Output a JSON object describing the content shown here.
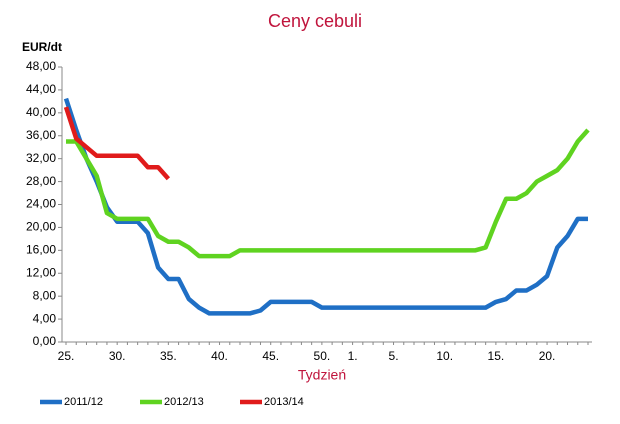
{
  "chart_data": {
    "type": "line",
    "title": "Ceny cebuli",
    "y_label": "EUR/dt",
    "x_label": "Tydzień",
    "categories": [
      "25.",
      null,
      null,
      null,
      null,
      "30.",
      null,
      null,
      null,
      null,
      "35.",
      null,
      null,
      null,
      null,
      "40.",
      null,
      null,
      null,
      null,
      "45.",
      null,
      null,
      null,
      null,
      "50.",
      null,
      null,
      "1.",
      null,
      null,
      null,
      "5.",
      null,
      null,
      null,
      null,
      "10.",
      null,
      null,
      null,
      null,
      "15.",
      null,
      null,
      null,
      null,
      "20.",
      null,
      null,
      null,
      null
    ],
    "series": [
      {
        "name": "2011/12",
        "color": "#1f6fc5",
        "values": [
          42.5,
          37,
          32,
          28,
          23.5,
          21,
          21,
          21,
          19,
          13,
          11,
          11,
          7.5,
          6,
          5,
          5,
          5,
          5,
          5,
          5.5,
          7,
          7,
          7,
          7,
          7,
          6,
          6,
          6,
          6,
          6,
          6,
          6,
          6,
          6,
          6,
          6,
          6,
          6,
          6,
          6,
          6,
          6,
          7,
          7.5,
          9,
          9,
          10,
          11.5,
          16.5,
          18.5,
          21.5,
          21.5
        ]
      },
      {
        "name": "2012/13",
        "color": "#5fd320",
        "values": [
          35,
          35,
          32,
          29,
          22.5,
          21.5,
          21.5,
          21.5,
          21.5,
          18.5,
          17.5,
          17.5,
          16.5,
          15,
          15,
          15,
          15,
          16,
          16,
          16,
          16,
          16,
          16,
          16,
          16,
          16,
          16,
          16,
          16,
          16,
          16,
          16,
          16,
          16,
          16,
          16,
          16,
          16,
          16,
          16,
          16,
          16.5,
          21,
          25,
          25,
          26,
          28,
          29,
          30,
          32,
          35,
          37
        ]
      },
      {
        "name": "2013/14",
        "color": "#e01b1b",
        "values": [
          41,
          35.5,
          34,
          32.5,
          32.5,
          32.5,
          32.5,
          32.5,
          30.5,
          30.5,
          28.5,
          null,
          null,
          null,
          null,
          null,
          null,
          null,
          null,
          null,
          null,
          null,
          null,
          null,
          null,
          null,
          null,
          null,
          null,
          null,
          null,
          null,
          null,
          null,
          null,
          null,
          null,
          null,
          null,
          null,
          null,
          null,
          null,
          null,
          null,
          null,
          null,
          null,
          null,
          null,
          null,
          null
        ]
      }
    ],
    "ylim": [
      0,
      48
    ],
    "yticks": [
      {
        "value": 0,
        "label": "0,00"
      },
      {
        "value": 4,
        "label": "4,00"
      },
      {
        "value": 8,
        "label": "8,00"
      },
      {
        "value": 12,
        "label": "12,00"
      },
      {
        "value": 16,
        "label": "16,00"
      },
      {
        "value": 20,
        "label": "20,00"
      },
      {
        "value": 24,
        "label": "24,00"
      },
      {
        "value": 28,
        "label": "28,00"
      },
      {
        "value": 32,
        "label": "32,00"
      },
      {
        "value": 36,
        "label": "36,00"
      },
      {
        "value": 40,
        "label": "40,00"
      },
      {
        "value": 44,
        "label": "44,00"
      },
      {
        "value": 48,
        "label": "48,00"
      }
    ],
    "grid": false,
    "legend": "bottom"
  }
}
